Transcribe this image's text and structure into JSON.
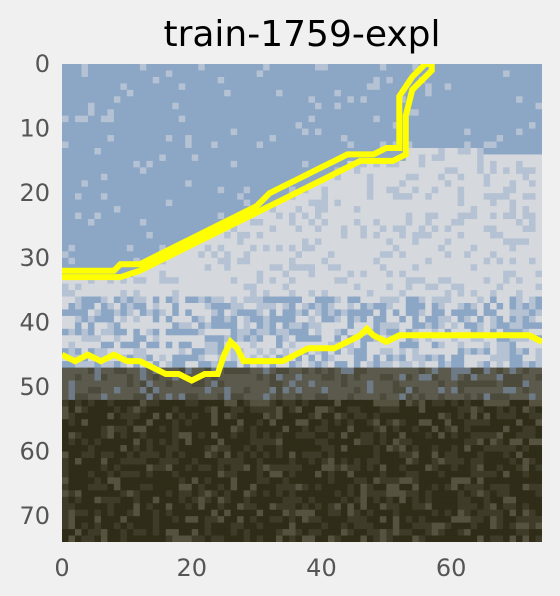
{
  "chart_data": {
    "type": "heatmap",
    "title": "train-1759-expl",
    "xlabel": "",
    "ylabel": "",
    "image_shape": [
      74,
      74
    ],
    "xlim": [
      0,
      74
    ],
    "ylim": [
      74,
      0
    ],
    "x_ticks": [
      0,
      20,
      40,
      60
    ],
    "y_ticks": [
      0,
      10,
      20,
      30,
      40,
      50,
      60,
      70
    ],
    "x_tick_labels": [
      "0",
      "20",
      "40",
      "60"
    ],
    "y_tick_labels": [
      "0",
      "10",
      "20",
      "30",
      "40",
      "50",
      "60",
      "70"
    ],
    "grid": false,
    "legend": "none",
    "colors": {
      "sky": "#8ca6c5",
      "cloud": "#d5d8dd",
      "cloud_mid": "#b4c2d3",
      "ground_band": "#5b5a4c",
      "ground_dark": "#2f2d18",
      "boundary": "#ffff00",
      "background": "#f0f0f0",
      "tick_text": "#555555"
    },
    "boundary_points": [
      [
        0,
        32
      ],
      [
        4,
        32
      ],
      [
        8,
        32
      ],
      [
        9,
        31
      ],
      [
        12,
        31
      ],
      [
        14,
        30
      ],
      [
        16,
        29
      ],
      [
        18,
        28
      ],
      [
        20,
        27
      ],
      [
        22,
        26
      ],
      [
        24,
        25
      ],
      [
        26,
        24
      ],
      [
        28,
        23
      ],
      [
        30,
        22
      ],
      [
        32,
        20
      ],
      [
        34,
        19
      ],
      [
        36,
        18
      ],
      [
        38,
        17
      ],
      [
        40,
        16
      ],
      [
        42,
        15
      ],
      [
        44,
        14
      ],
      [
        48,
        14
      ],
      [
        50,
        13
      ],
      [
        52,
        13
      ],
      [
        52,
        5
      ],
      [
        54,
        2
      ],
      [
        56,
        0
      ],
      [
        57,
        0
      ],
      [
        57,
        1
      ],
      [
        54,
        4
      ],
      [
        53,
        8
      ],
      [
        53,
        14
      ],
      [
        51,
        15
      ],
      [
        46,
        15
      ],
      [
        44,
        16
      ],
      [
        42,
        17
      ],
      [
        40,
        18
      ],
      [
        38,
        19
      ],
      [
        36,
        20
      ],
      [
        34,
        21
      ],
      [
        32,
        22
      ],
      [
        30,
        23
      ],
      [
        28,
        24
      ],
      [
        26,
        25
      ],
      [
        24,
        26
      ],
      [
        22,
        27
      ],
      [
        20,
        28
      ],
      [
        18,
        29
      ],
      [
        16,
        30
      ],
      [
        14,
        31
      ],
      [
        12,
        32
      ],
      [
        9,
        33
      ],
      [
        0,
        33
      ]
    ],
    "boundary_lower": [
      [
        0,
        45
      ],
      [
        2,
        46
      ],
      [
        4,
        45
      ],
      [
        6,
        46
      ],
      [
        8,
        45
      ],
      [
        10,
        46
      ],
      [
        12,
        46
      ],
      [
        14,
        47
      ],
      [
        16,
        48
      ],
      [
        18,
        48
      ],
      [
        20,
        49
      ],
      [
        22,
        48
      ],
      [
        24,
        48
      ],
      [
        25,
        45
      ],
      [
        26,
        43
      ],
      [
        27,
        44
      ],
      [
        28,
        46
      ],
      [
        30,
        46
      ],
      [
        32,
        46
      ],
      [
        34,
        46
      ],
      [
        36,
        45
      ],
      [
        38,
        44
      ],
      [
        40,
        44
      ],
      [
        42,
        44
      ],
      [
        44,
        43
      ],
      [
        46,
        42
      ],
      [
        47,
        41
      ],
      [
        48,
        42
      ],
      [
        50,
        43
      ],
      [
        52,
        42
      ],
      [
        56,
        42
      ],
      [
        60,
        42
      ],
      [
        64,
        42
      ],
      [
        68,
        42
      ],
      [
        72,
        42
      ],
      [
        74,
        43
      ]
    ]
  }
}
